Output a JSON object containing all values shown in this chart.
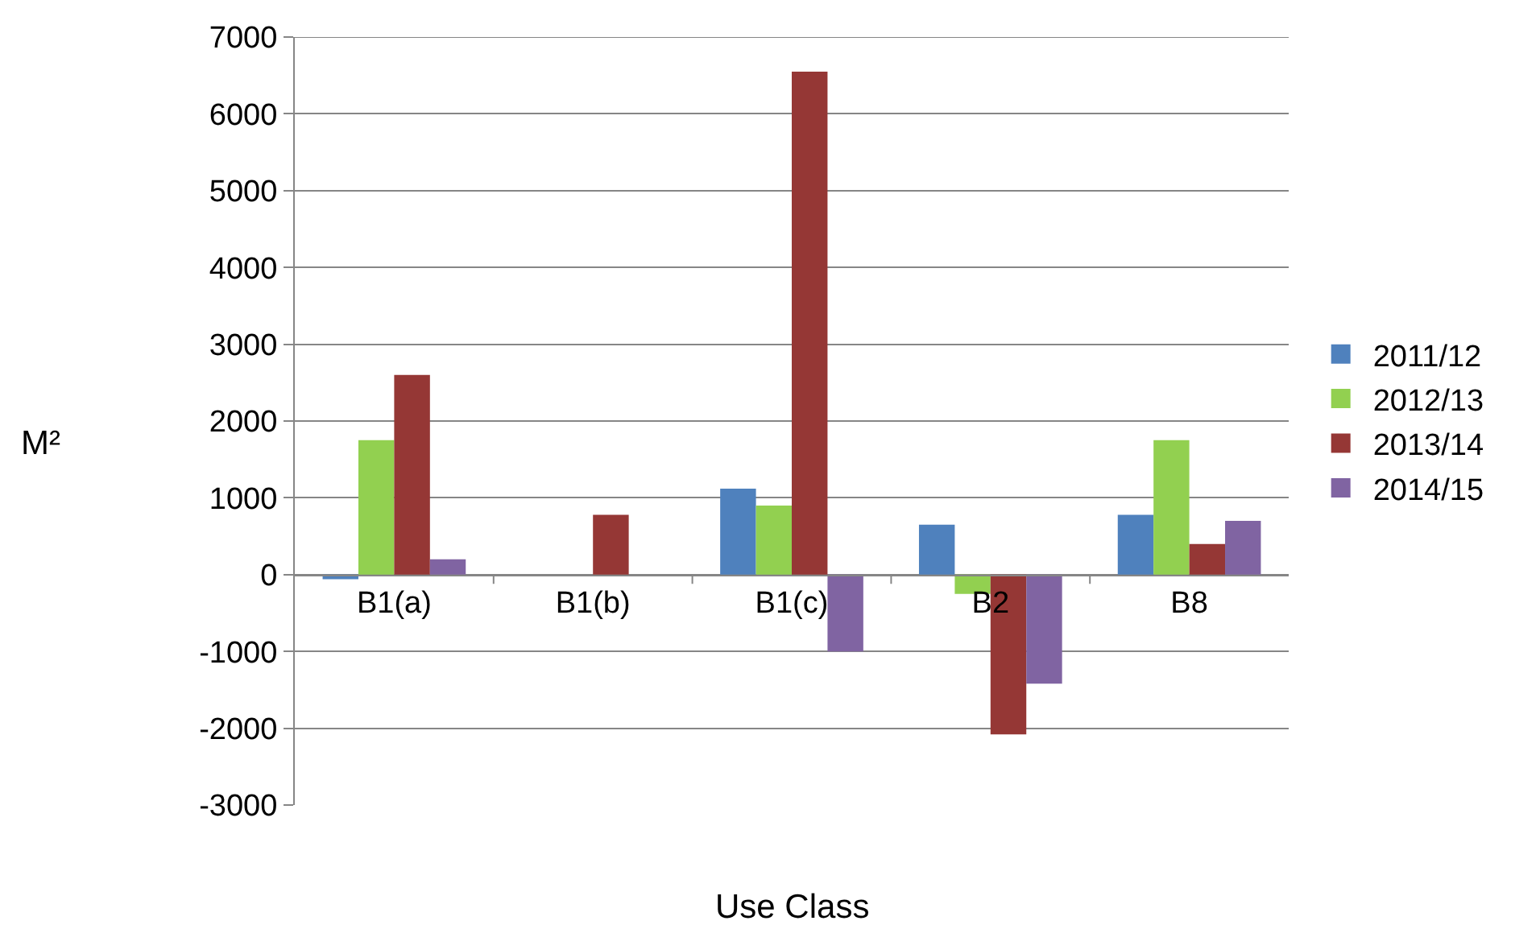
{
  "chart_data": {
    "type": "bar",
    "xlabel": "Use Class",
    "ylabel": "M²",
    "categories": [
      "B1(a)",
      "B1(b)",
      "B1(c)",
      "B2",
      "B8"
    ],
    "series": [
      {
        "name": "2011/12",
        "color": "#4f81bd",
        "values": [
          -60,
          null,
          1120,
          650,
          780
        ]
      },
      {
        "name": "2012/13",
        "color": "#92d050",
        "values": [
          1750,
          null,
          900,
          -250,
          1750
        ]
      },
      {
        "name": "2013/14",
        "color": "#953735",
        "values": [
          2600,
          780,
          6550,
          -2080,
          400
        ]
      },
      {
        "name": "2014/15",
        "color": "#8064a2",
        "values": [
          200,
          null,
          -1000,
          -1420,
          700
        ]
      }
    ],
    "ylim": [
      -3000,
      7000
    ],
    "yticks": [
      -3000,
      -2000,
      -1000,
      0,
      1000,
      2000,
      3000,
      4000,
      5000,
      6000,
      7000
    ],
    "grid": "y",
    "legend": "right"
  }
}
